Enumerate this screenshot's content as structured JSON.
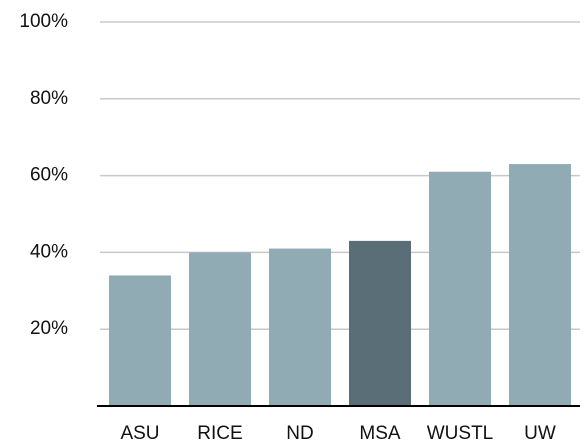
{
  "chart_data": {
    "type": "bar",
    "categories": [
      "ASU",
      "RICE",
      "ND",
      "MSA",
      "WUSTL",
      "UW"
    ],
    "values": [
      34,
      40,
      41,
      43,
      61,
      63
    ],
    "colors": [
      "#91abb5",
      "#91abb5",
      "#91abb5",
      "#5a6e78",
      "#91abb5",
      "#91abb5"
    ],
    "ylim": [
      0,
      100
    ],
    "yticks": [
      {
        "value": 20,
        "label": "20%"
      },
      {
        "value": 40,
        "label": "40%"
      },
      {
        "value": 60,
        "label": "60%"
      },
      {
        "value": 80,
        "label": "80%"
      },
      {
        "value": 100,
        "label": "100%"
      }
    ],
    "grid": true
  }
}
